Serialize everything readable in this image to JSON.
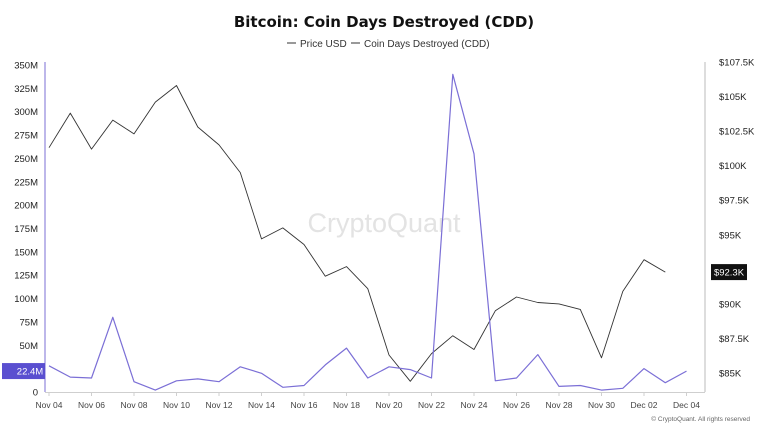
{
  "chart_data": {
    "type": "line",
    "title": "Bitcoin: Coin Days Destroyed (CDD)",
    "watermark": "CryptoQuant",
    "credit": "© CryptoQuant. All rights reserved",
    "legend": [
      "Price USD",
      "Coin Days Destroyed (CDD)"
    ],
    "left_axis": {
      "ticks": [
        "350M",
        "325M",
        "300M",
        "275M",
        "250M",
        "225M",
        "200M",
        "175M",
        "150M",
        "125M",
        "100M",
        "75M",
        "50M",
        "25M",
        "0"
      ],
      "ylim": [
        0,
        350000000
      ],
      "current_label": "22.4M",
      "current_value": 22400000
    },
    "right_axis": {
      "ticks": [
        "$107.5K",
        "$105K",
        "$102.5K",
        "$100K",
        "$97.5K",
        "$95K",
        "$92.3K",
        "$90K",
        "$87.5K",
        "$85K"
      ],
      "current_label": "$92.3K",
      "current_value": 92300
    },
    "x_ticks": [
      "Nov 04",
      "Nov 06",
      "Nov 08",
      "Nov 10",
      "Nov 12",
      "Nov 14",
      "Nov 16",
      "Nov 18",
      "Nov 20",
      "Nov 22",
      "Nov 24",
      "Nov 26",
      "Nov 28",
      "Nov 30",
      "Dec 02",
      "Dec 04"
    ],
    "series": [
      {
        "name": "Price USD",
        "color": "#333333",
        "axis": "right",
        "points": [
          [
            "Nov 04",
            101300
          ],
          [
            "Nov 05",
            103800
          ],
          [
            "Nov 06",
            101200
          ],
          [
            "Nov 07",
            103300
          ],
          [
            "Nov 08",
            102300
          ],
          [
            "Nov 09",
            104600
          ],
          [
            "Nov 10",
            105800
          ],
          [
            "Nov 11",
            102800
          ],
          [
            "Nov 12",
            101500
          ],
          [
            "Nov 13",
            99500
          ],
          [
            "Nov 14",
            94700
          ],
          [
            "Nov 15",
            95500
          ],
          [
            "Nov 16",
            94300
          ],
          [
            "Nov 17",
            92000
          ],
          [
            "Nov 18",
            92700
          ],
          [
            "Nov 19",
            91100
          ],
          [
            "Nov 20",
            86300
          ],
          [
            "Nov 21",
            84400
          ],
          [
            "Nov 22",
            86400
          ],
          [
            "Nov 23",
            87700
          ],
          [
            "Nov 24",
            86700
          ],
          [
            "Nov 25",
            89500
          ],
          [
            "Nov 26",
            90500
          ],
          [
            "Nov 27",
            90100
          ],
          [
            "Nov 28",
            90000
          ],
          [
            "Nov 29",
            89600
          ],
          [
            "Nov 30",
            86100
          ],
          [
            "Dec 01",
            90900
          ],
          [
            "Dec 02",
            93200
          ],
          [
            "Dec 03",
            92300
          ]
        ]
      },
      {
        "name": "Coin Days Destroyed (CDD)",
        "color": "#7b6fd6",
        "axis": "left",
        "points": [
          [
            "Nov 04",
            28000000
          ],
          [
            "Nov 05",
            16000000
          ],
          [
            "Nov 06",
            15000000
          ],
          [
            "Nov 07",
            80000000
          ],
          [
            "Nov 08",
            11000000
          ],
          [
            "Nov 09",
            2000000
          ],
          [
            "Nov 10",
            12000000
          ],
          [
            "Nov 11",
            14000000
          ],
          [
            "Nov 12",
            11000000
          ],
          [
            "Nov 13",
            27000000
          ],
          [
            "Nov 14",
            20000000
          ],
          [
            "Nov 15",
            5000000
          ],
          [
            "Nov 16",
            7000000
          ],
          [
            "Nov 17",
            29000000
          ],
          [
            "Nov 18",
            47000000
          ],
          [
            "Nov 19",
            15000000
          ],
          [
            "Nov 20",
            27000000
          ],
          [
            "Nov 21",
            24000000
          ],
          [
            "Nov 22",
            15000000
          ],
          [
            "Nov 23",
            340000000
          ],
          [
            "Nov 24",
            255000000
          ],
          [
            "Nov 25",
            12000000
          ],
          [
            "Nov 26",
            15000000
          ],
          [
            "Nov 27",
            40000000
          ],
          [
            "Nov 28",
            6000000
          ],
          [
            "Nov 29",
            7000000
          ],
          [
            "Nov 30",
            2000000
          ],
          [
            "Dec 01",
            4000000
          ],
          [
            "Dec 02",
            25000000
          ],
          [
            "Dec 03",
            10000000
          ],
          [
            "Dec 04",
            22400000
          ]
        ]
      }
    ]
  }
}
